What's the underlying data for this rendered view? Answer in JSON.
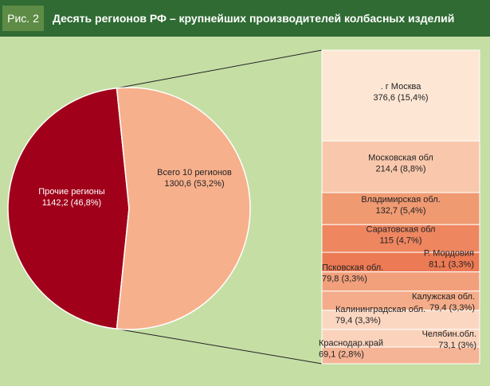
{
  "header": {
    "figure_number": "Рис. 2",
    "title": "Десять регионов РФ – крупнейших производителей колбасных изделий"
  },
  "colors": {
    "background": "#c5dea4",
    "header": "#2f6b33",
    "figure_badge": "#5e8c46",
    "pie_others": "#a0001a",
    "pie_top10": "#f7b08c"
  },
  "chart_data": {
    "type": "pie",
    "pie": {
      "slices": [
        {
          "name": "Прочие регионы",
          "value": 1142.2,
          "value_label": "1142,2 (46,8%)",
          "color": "#a0001a",
          "label_color": "#ffffff"
        },
        {
          "name": "Всего 10 регионов",
          "value": 1300.6,
          "value_label": "1300,6 (53,2%)",
          "color": "#f7b08c",
          "label_color": "#222222"
        }
      ]
    },
    "breakdown": {
      "type": "stacked_bar",
      "parent_slice": "Всего 10 регионов",
      "segments": [
        {
          "name": ".      г Москва",
          "value": 376.6,
          "value_label": "376,6 (15,4%)",
          "color": "#fde6d4"
        },
        {
          "name": "Московская обл",
          "value": 214.4,
          "value_label": "214,4 (8,8%)",
          "color": "#f9c8ac"
        },
        {
          "name": "Владимирская обл.",
          "value": 132.7,
          "value_label": "132,7 (5,4%)",
          "color": "#f09a72"
        },
        {
          "name": "Саратовская обл",
          "value": 115,
          "value_label": "115 (4,7%)",
          "color": "#ee8660"
        },
        {
          "name": "Р. Мордовия",
          "value": 81.1,
          "value_label": "81,1 (3,3%)",
          "color": "#ec7a54"
        },
        {
          "name": "Псковская обл.",
          "value": 79.8,
          "value_label": "79,8 (3,3%)",
          "color": "#f2a07c"
        },
        {
          "name": "Калужская обл.",
          "value": 79.4,
          "value_label": "79,4 (3,3%)",
          "color": "#f4ac8a"
        },
        {
          "name": "Калининградская обл.",
          "value": 79.4,
          "value_label": "79,4 (3,3%)",
          "color": "#fbd7c2"
        },
        {
          "name": "Челябин.обл.",
          "value": 73.1,
          "value_label": "73,1 (3%)",
          "color": "#fbd3bc"
        },
        {
          "name": "Краснодар.край",
          "value": 69.1,
          "value_label": "69,1 (2,8%)",
          "color": "#f6b496"
        }
      ]
    }
  }
}
